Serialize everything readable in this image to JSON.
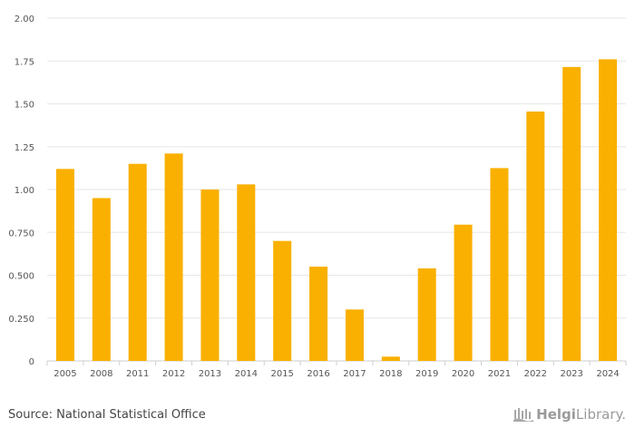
{
  "chart_data": {
    "type": "bar",
    "title": "",
    "xlabel": "",
    "ylabel": "",
    "categories": [
      "2005",
      "2008",
      "2011",
      "2012",
      "2013",
      "2014",
      "2015",
      "2016",
      "2017",
      "2018",
      "2019",
      "2020",
      "2021",
      "2022",
      "2023",
      "2024"
    ],
    "values": [
      1.12,
      0.95,
      1.15,
      1.21,
      1.0,
      1.03,
      0.7,
      0.55,
      0.3,
      0.025,
      0.54,
      0.795,
      1.125,
      1.455,
      1.715,
      1.76
    ],
    "ylim": [
      0,
      2.0
    ],
    "yticks": [
      "0",
      "0.250",
      "0.500",
      "0.750",
      "1.00",
      "1.25",
      "1.50",
      "1.75",
      "2.00"
    ],
    "grid": true,
    "bar_color": "#f9b000"
  },
  "footer": {
    "source": "Source: National Statistical Office",
    "brand_bold": "Helgi",
    "brand_light": "Library."
  }
}
